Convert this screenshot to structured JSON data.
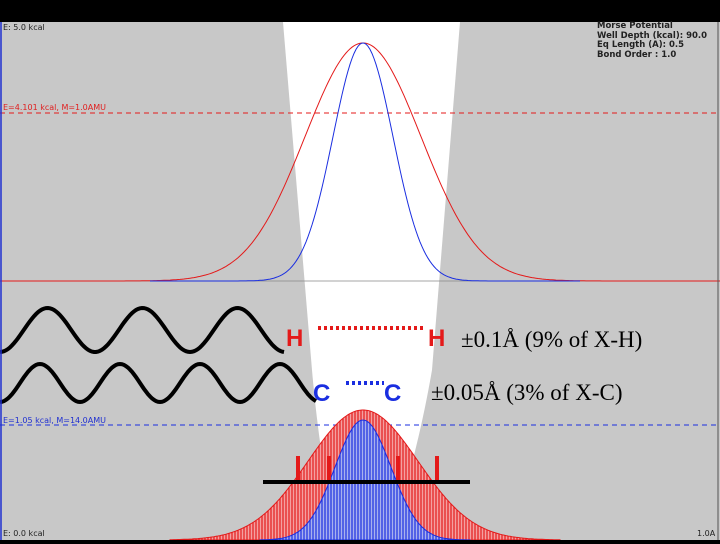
{
  "labels": {
    "top_energy": "E: 5.0 kcal",
    "bottom_energy": "E: 0.0 kcal",
    "h_level": "E=4.101 kcal, M=1.0AMU",
    "c_level": "E=1.05 kcal, M=14.0AMU",
    "x_max": "1.0A"
  },
  "potential_info": {
    "line1": "Morse Potential",
    "line2": "Well Depth (kcal): 90.0",
    "line3": "Eq Length (A): 0.5",
    "line4": "Bond Order : 1.0"
  },
  "atoms": {
    "h1": "H",
    "h2": "H",
    "c1": "C",
    "c2": "C"
  },
  "annotations": {
    "h_range": "±0.1Å (9% of X-H)",
    "c_range": "±0.05Å (3% of X-C)"
  },
  "colors": {
    "plot_background": "#c8c8c8",
    "well": "#ffffff",
    "hydrogen": "#e41a1a",
    "carbon": "#1a2ee0",
    "frame": "#000000"
  }
}
